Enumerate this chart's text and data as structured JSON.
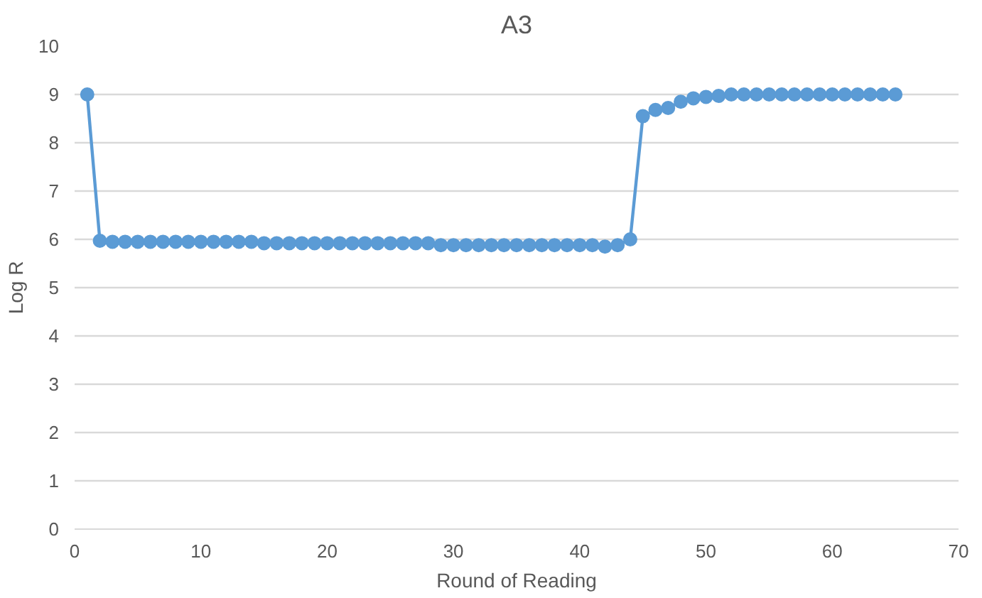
{
  "chart_data": {
    "type": "line",
    "title": "A3",
    "xlabel": "Round of Reading",
    "ylabel": "Log R",
    "x": [
      1,
      2,
      3,
      4,
      5,
      6,
      7,
      8,
      9,
      10,
      11,
      12,
      13,
      14,
      15,
      16,
      17,
      18,
      19,
      20,
      21,
      22,
      23,
      24,
      25,
      26,
      27,
      28,
      29,
      30,
      31,
      32,
      33,
      34,
      35,
      36,
      37,
      38,
      39,
      40,
      41,
      42,
      43,
      44,
      45,
      46,
      47,
      48,
      49,
      50,
      51,
      52,
      53,
      54,
      55,
      56,
      57,
      58,
      59,
      60,
      61,
      62,
      63,
      64,
      65
    ],
    "series": [
      {
        "color": "#5b9bd5",
        "values": [
          9,
          5.97,
          5.95,
          5.95,
          5.95,
          5.95,
          5.95,
          5.95,
          5.95,
          5.95,
          5.95,
          5.95,
          5.95,
          5.95,
          5.92,
          5.92,
          5.92,
          5.92,
          5.92,
          5.92,
          5.92,
          5.92,
          5.92,
          5.92,
          5.92,
          5.92,
          5.92,
          5.92,
          5.88,
          5.88,
          5.88,
          5.88,
          5.88,
          5.88,
          5.88,
          5.88,
          5.88,
          5.88,
          5.88,
          5.88,
          5.88,
          5.85,
          5.88,
          6.0,
          8.55,
          8.68,
          8.72,
          8.85,
          8.92,
          8.95,
          8.97,
          9,
          9,
          9,
          9,
          9,
          9,
          9,
          9,
          9,
          9,
          9,
          9,
          9,
          9
        ]
      }
    ],
    "xlim": [
      0,
      70
    ],
    "xticks": [
      0,
      10,
      20,
      30,
      40,
      50,
      60,
      70
    ],
    "ylim": [
      0,
      10
    ],
    "yticks": [
      0,
      1,
      2,
      3,
      4,
      5,
      6,
      7,
      8,
      9,
      10
    ],
    "grid": "y",
    "marker": "circle",
    "line_style": "solid"
  }
}
